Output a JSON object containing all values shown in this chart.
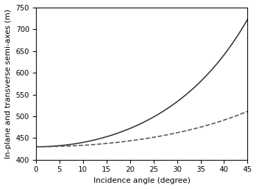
{
  "r0": 430.0,
  "theta_min": 0,
  "theta_max": 45,
  "ylim": [
    400,
    750
  ],
  "xlim": [
    0,
    45
  ],
  "xticks": [
    0,
    5,
    10,
    15,
    20,
    25,
    30,
    35,
    40,
    45
  ],
  "yticks": [
    400,
    450,
    500,
    550,
    600,
    650,
    700,
    750
  ],
  "xlabel": "Incidence angle (degree)",
  "ylabel": "In-plane and transverse semi-axes (m)",
  "solid_color": "#333333",
  "dashed_color": "#555555",
  "linewidth": 1.2,
  "background_color": "#ffffff",
  "fig_width": 3.71,
  "fig_height": 2.73,
  "dpi": 100
}
